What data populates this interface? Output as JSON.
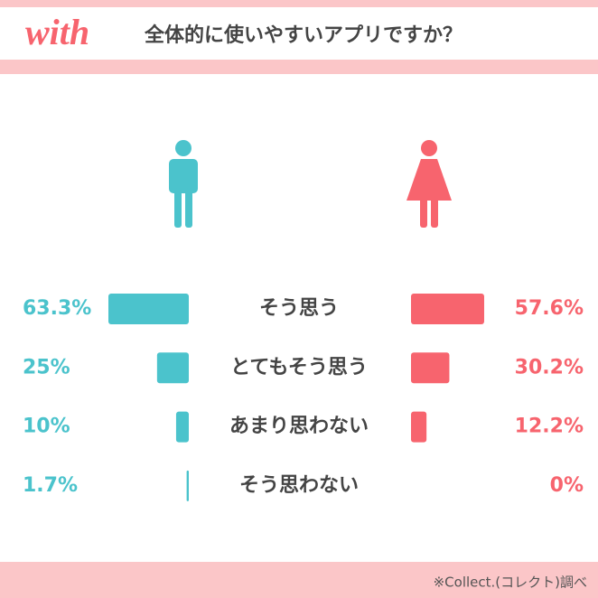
{
  "logo": "with",
  "chart_data": {
    "type": "butterfly-bar",
    "title": "全体的に使いやすいアプリですか？",
    "categories": [
      "そう思う",
      "とてもそう思う",
      "あまり思わない",
      "そう思わない"
    ],
    "series": [
      {
        "color": "#4bc3cc",
        "values": [
          63.3,
          25,
          10,
          1.7
        ],
        "value_labels": [
          "63.3%",
          "25%",
          "10%",
          "1.7%"
        ]
      },
      {
        "color": "#f7646e",
        "values": [
          57.6,
          30.2,
          12.2,
          0
        ],
        "value_labels": [
          "57.6%",
          "30.2%",
          "12.2%",
          "0%"
        ]
      }
    ]
  },
  "footnote": "※Collect.(コレクト)調べ"
}
